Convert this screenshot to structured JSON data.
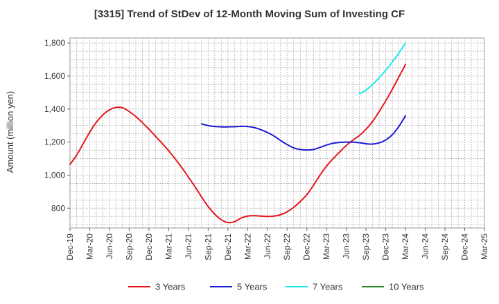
{
  "chart_data": {
    "type": "line",
    "title": "[3315]  Trend of StDev of 12-Month Moving Sum of Investing CF",
    "ylabel": "Amount (million yen)",
    "xlabel": "",
    "ylim": [
      680,
      1830
    ],
    "yticks": [
      800,
      1000,
      1200,
      1400,
      1600,
      1800
    ],
    "ytick_labels": [
      "800",
      "1,000",
      "1,200",
      "1,400",
      "1,600",
      "1,800"
    ],
    "x_start": "Dec-19",
    "x_end": "Mar-25",
    "x_ticks": [
      "Dec-19",
      "Mar-20",
      "Jun-20",
      "Sep-20",
      "Dec-20",
      "Mar-21",
      "Jun-21",
      "Sep-21",
      "Dec-21",
      "Mar-22",
      "Jun-22",
      "Sep-22",
      "Dec-22",
      "Mar-23",
      "Jun-23",
      "Sep-23",
      "Dec-23",
      "Mar-24",
      "Jun-24",
      "Sep-24",
      "Dec-24",
      "Mar-25"
    ],
    "grid": true,
    "legend_position": "bottom",
    "series": [
      {
        "name": "3 Years",
        "color": "#e8141c",
        "points": [
          [
            "Dec-19",
            1065
          ],
          [
            "Jan-20",
            1120
          ],
          [
            "Feb-20",
            1190
          ],
          [
            "Mar-20",
            1260
          ],
          [
            "Apr-20",
            1320
          ],
          [
            "May-20",
            1365
          ],
          [
            "Jun-20",
            1395
          ],
          [
            "Jul-20",
            1410
          ],
          [
            "Aug-20",
            1408
          ],
          [
            "Sep-20",
            1385
          ],
          [
            "Oct-20",
            1355
          ],
          [
            "Nov-20",
            1318
          ],
          [
            "Dec-20",
            1278
          ],
          [
            "Jan-21",
            1235
          ],
          [
            "Feb-21",
            1192
          ],
          [
            "Mar-21",
            1148
          ],
          [
            "Apr-21",
            1098
          ],
          [
            "May-21",
            1045
          ],
          [
            "Jun-21",
            988
          ],
          [
            "Jul-21",
            930
          ],
          [
            "Aug-21",
            868
          ],
          [
            "Sep-21",
            810
          ],
          [
            "Oct-21",
            764
          ],
          [
            "Nov-21",
            730
          ],
          [
            "Dec-21",
            713
          ],
          [
            "Jan-22",
            718
          ],
          [
            "Feb-22",
            740
          ],
          [
            "Mar-22",
            752
          ],
          [
            "Apr-22",
            755
          ],
          [
            "May-22",
            752
          ],
          [
            "Jun-22",
            750
          ],
          [
            "Jul-22",
            752
          ],
          [
            "Aug-22",
            760
          ],
          [
            "Sep-22",
            778
          ],
          [
            "Oct-22",
            805
          ],
          [
            "Nov-22",
            840
          ],
          [
            "Dec-22",
            882
          ],
          [
            "Jan-23",
            938
          ],
          [
            "Feb-23",
            1000
          ],
          [
            "Mar-23",
            1055
          ],
          [
            "Apr-23",
            1100
          ],
          [
            "May-23",
            1140
          ],
          [
            "Jun-23",
            1180
          ],
          [
            "Jul-23",
            1212
          ],
          [
            "Aug-23",
            1240
          ],
          [
            "Sep-23",
            1278
          ],
          [
            "Oct-23",
            1325
          ],
          [
            "Nov-23",
            1385
          ],
          [
            "Dec-23",
            1450
          ],
          [
            "Jan-24",
            1520
          ],
          [
            "Feb-24",
            1595
          ],
          [
            "Mar-24",
            1670
          ]
        ]
      },
      {
        "name": "5 Years",
        "color": "#1a1ad2",
        "points": [
          [
            "Aug-21",
            1310
          ],
          [
            "Sep-21",
            1300
          ],
          [
            "Oct-21",
            1294
          ],
          [
            "Nov-21",
            1292
          ],
          [
            "Dec-21",
            1292
          ],
          [
            "Jan-22",
            1293
          ],
          [
            "Feb-22",
            1295
          ],
          [
            "Mar-22",
            1294
          ],
          [
            "Apr-22",
            1288
          ],
          [
            "May-22",
            1275
          ],
          [
            "Jun-22",
            1258
          ],
          [
            "Jul-22",
            1237
          ],
          [
            "Aug-22",
            1210
          ],
          [
            "Sep-22",
            1185
          ],
          [
            "Oct-22",
            1165
          ],
          [
            "Nov-22",
            1155
          ],
          [
            "Dec-22",
            1152
          ],
          [
            "Jan-23",
            1155
          ],
          [
            "Feb-23",
            1168
          ],
          [
            "Mar-23",
            1182
          ],
          [
            "Apr-23",
            1193
          ],
          [
            "May-23",
            1198
          ],
          [
            "Jun-23",
            1200
          ],
          [
            "Jul-23",
            1200
          ],
          [
            "Aug-23",
            1196
          ],
          [
            "Sep-23",
            1190
          ],
          [
            "Oct-23",
            1188
          ],
          [
            "Nov-23",
            1195
          ],
          [
            "Dec-23",
            1213
          ],
          [
            "Jan-24",
            1245
          ],
          [
            "Feb-24",
            1295
          ],
          [
            "Mar-24",
            1360
          ]
        ]
      },
      {
        "name": "7 Years",
        "color": "#1ae8ec",
        "points": [
          [
            "Aug-23",
            1492
          ],
          [
            "Sep-23",
            1515
          ],
          [
            "Oct-23",
            1548
          ],
          [
            "Nov-23",
            1590
          ],
          [
            "Dec-23",
            1635
          ],
          [
            "Jan-24",
            1685
          ],
          [
            "Feb-24",
            1740
          ],
          [
            "Mar-24",
            1800
          ]
        ]
      },
      {
        "name": "10 Years",
        "color": "#2a8a2a",
        "points": []
      }
    ]
  }
}
